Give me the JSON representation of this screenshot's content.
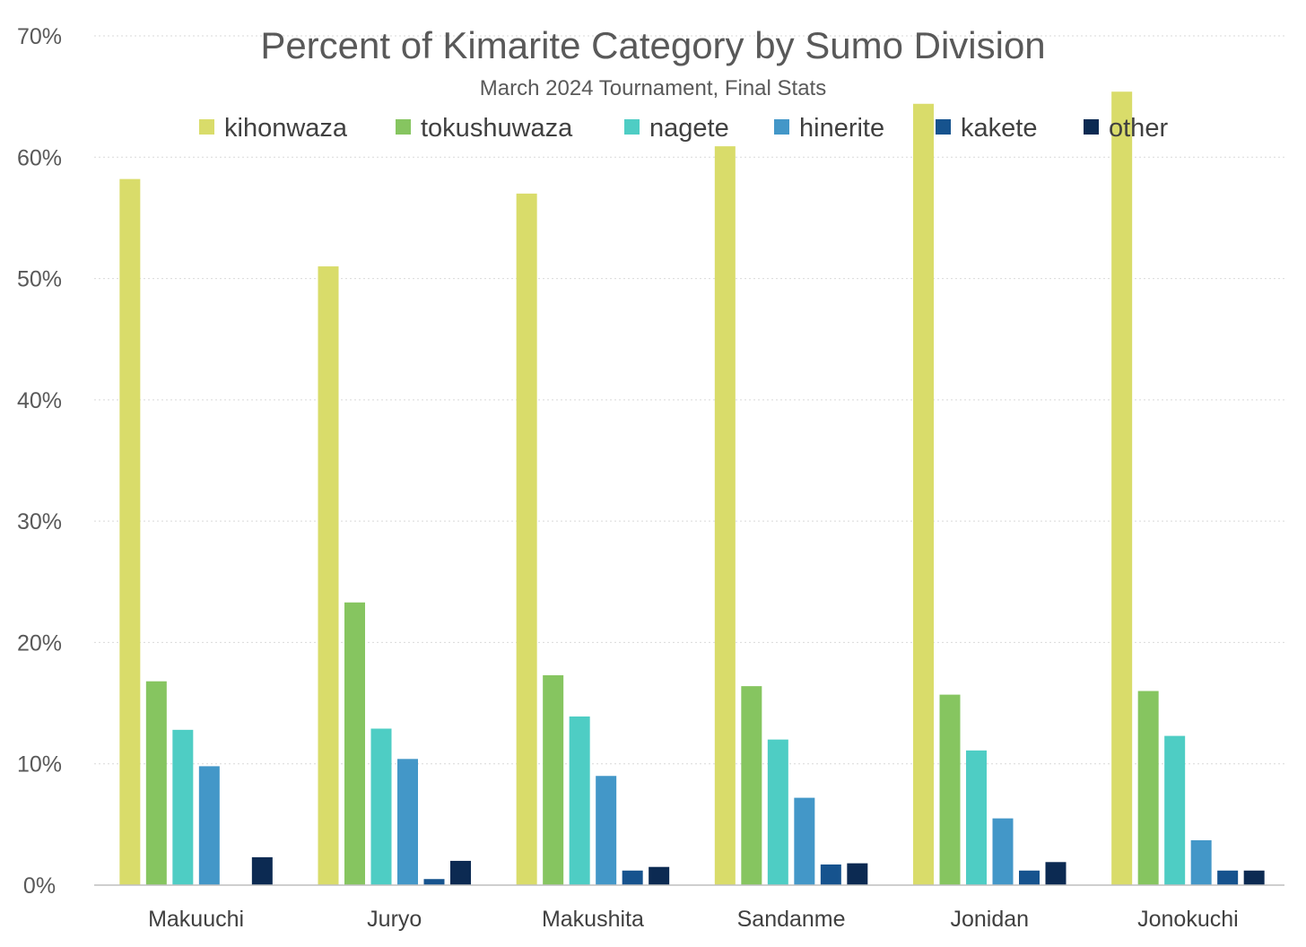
{
  "chart_data": {
    "type": "bar",
    "title": "Percent of Kimarite Category by Sumo Division",
    "subtitle": "March 2024 Tournament, Final Stats",
    "xlabel": "",
    "ylabel": "",
    "ylim": [
      0,
      70
    ],
    "y_ticks": [
      "0%",
      "10%",
      "20%",
      "30%",
      "40%",
      "50%",
      "60%",
      "70%"
    ],
    "grid": true,
    "legend_position": "top",
    "categories": [
      "Makuuchi",
      "Juryo",
      "Makushita",
      "Sandanme",
      "Jonidan",
      "Jonokuchi"
    ],
    "series": [
      {
        "name": "kihonwaza",
        "color": "#d9dc6a",
        "values": [
          58.2,
          51.0,
          57.0,
          60.9,
          64.4,
          65.4
        ]
      },
      {
        "name": "tokushuwaza",
        "color": "#86c560",
        "values": [
          16.8,
          23.3,
          17.3,
          16.4,
          15.7,
          16.0
        ]
      },
      {
        "name": "nagete",
        "color": "#4ecdc4",
        "values": [
          12.8,
          12.9,
          13.9,
          12.0,
          11.1,
          12.3
        ]
      },
      {
        "name": "hinerite",
        "color": "#4397c8",
        "values": [
          9.8,
          10.4,
          9.0,
          7.2,
          5.5,
          3.7
        ]
      },
      {
        "name": "kakete",
        "color": "#16538e",
        "values": [
          0.0,
          0.5,
          1.2,
          1.7,
          1.2,
          1.2
        ]
      },
      {
        "name": "other",
        "color": "#0c2a52",
        "values": [
          2.3,
          2.0,
          1.5,
          1.8,
          1.9,
          1.2
        ]
      }
    ]
  }
}
